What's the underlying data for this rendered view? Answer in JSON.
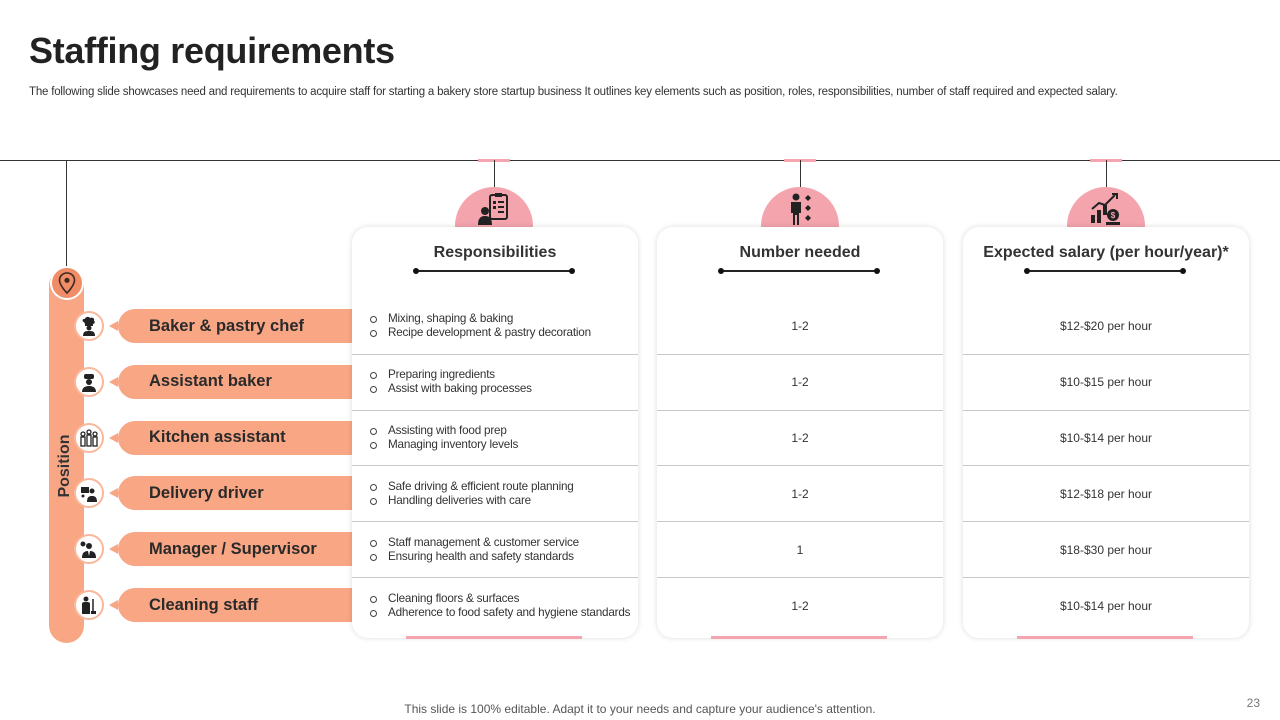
{
  "title": "Staffing requirements",
  "subtitle": "The following slide showcases need and requirements to acquire staff for  starting a bakery store startup business It outlines key elements such as position, roles, responsibilities, number of staff required and expected salary.",
  "position_label": "Position",
  "columns": {
    "responsibilities": "Responsibilities",
    "number": "Number needed",
    "salary": "Expected salary (per hour/year)*"
  },
  "roles": [
    {
      "name": "Baker & pastry chef",
      "icon": "chef-icon",
      "resp": [
        "Mixing, shaping & baking",
        "Recipe development & pastry decoration"
      ],
      "number": "1-2",
      "salary": "$12-$20 per hour"
    },
    {
      "name": "Assistant baker",
      "icon": "baker-icon",
      "resp": [
        "Preparing ingredients",
        "Assist with baking processes"
      ],
      "number": "1-2",
      "salary": "$10-$15 per hour"
    },
    {
      "name": "Kitchen assistant",
      "icon": "team-icon",
      "resp": [
        "Assisting with food prep",
        "Managing inventory levels"
      ],
      "number": "1-2",
      "salary": "$10-$14 per hour"
    },
    {
      "name": "Delivery driver",
      "icon": "driver-icon",
      "resp": [
        "Safe driving & efficient route planning",
        "Handling deliveries with care"
      ],
      "number": "1-2",
      "salary": "$12-$18 per hour"
    },
    {
      "name": "Manager / Supervisor",
      "icon": "manager-icon",
      "resp": [
        "Staff management & customer service",
        "Ensuring health and safety standards"
      ],
      "number": "1",
      "salary": "$18-$30 per hour"
    },
    {
      "name": "Cleaning staff",
      "icon": "cleaner-icon",
      "resp": [
        "Cleaning floors & surfaces",
        "Adherence to food safety and hygiene standards"
      ],
      "number": "1-2",
      "salary": "$10-$14 per hour"
    }
  ],
  "colors": {
    "accent": "#f9a685",
    "pin": "#f08c66",
    "pink": "#f4a4ad"
  },
  "footer": "This slide is 100% editable. Adapt it to your needs and capture your audience's attention.",
  "page_number": "23"
}
